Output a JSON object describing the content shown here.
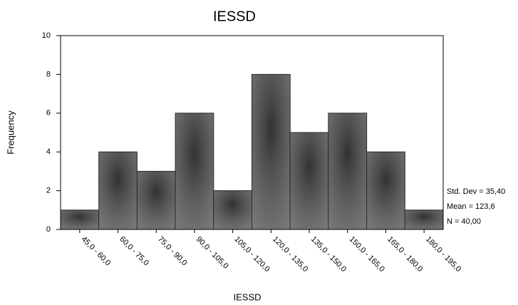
{
  "chart_data": {
    "type": "bar",
    "title": "IESSD",
    "x_label": "IESSD",
    "y_label": "Frequency",
    "categories": [
      "45,0 - 60,0",
      "60,0 - 75,0",
      "75,0 - 90,0",
      "90,0 - 105,0",
      "105,0 - 120,0",
      "120,0 - 135,0",
      "135,0 - 150,0",
      "150,0 - 165,0",
      "165,0 - 180,0",
      "180,0 - 195,0"
    ],
    "values": [
      1,
      4,
      3,
      6,
      2,
      8,
      5,
      6,
      4,
      1
    ],
    "color": "#4d4d4d",
    "ylim": [
      0,
      10
    ],
    "yticks": [
      0,
      2,
      4,
      6,
      8,
      10
    ],
    "grid": false,
    "annotations": [
      "Std. Dev = 35,40",
      "Mean = 123,6",
      "N = 40,00"
    ]
  }
}
